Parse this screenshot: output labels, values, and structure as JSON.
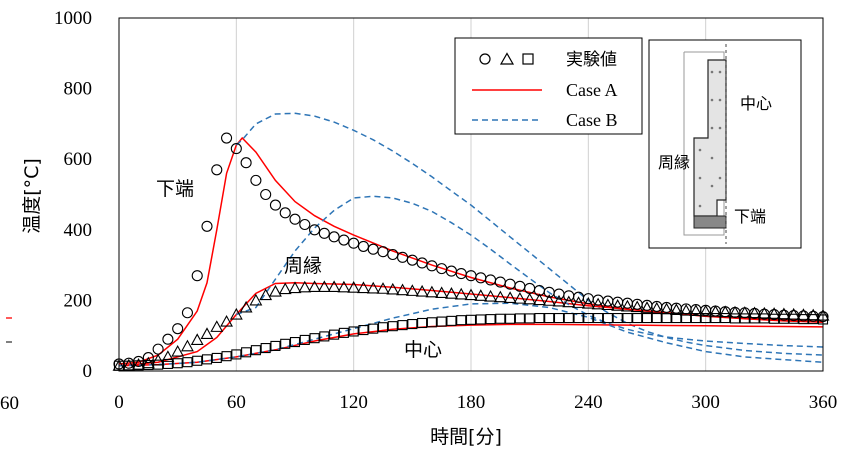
{
  "chart_data": {
    "type": "line",
    "xlabel": "時間[分]",
    "ylabel": "温度[°C]",
    "xlim": [
      0,
      360
    ],
    "ylim": [
      0,
      1000
    ],
    "xticks": [
      "0",
      "60",
      "120",
      "180",
      "240",
      "300",
      "360"
    ],
    "yticks": [
      "0",
      "200",
      "400",
      "600",
      "800",
      "1000"
    ],
    "left_clipped_tick": "60",
    "grid": "vertical only",
    "legend": {
      "position": "top-right",
      "marker_label": "実験値",
      "marker_glyphs": "○ △ □",
      "case_a": "Case A",
      "case_b": "Case B"
    },
    "annotations": {
      "bottom": "下端",
      "edge": "周縁",
      "center": "中心"
    },
    "inset": {
      "center": "中心",
      "edge": "周縁",
      "bottom": "下端"
    },
    "colors": {
      "case_a": "#ff0000",
      "case_b": "#2e75b6",
      "markers": "#000000"
    },
    "series": [
      {
        "name": "下端",
        "kind": "experiment",
        "marker": "circle",
        "x": [
          0,
          5,
          10,
          15,
          20,
          25,
          30,
          35,
          40,
          45,
          50,
          55,
          60,
          65,
          70,
          75,
          80,
          85,
          90,
          95,
          100,
          105,
          110,
          115,
          120,
          125,
          130,
          135,
          140,
          145,
          150,
          155,
          160,
          165,
          170,
          175,
          180,
          185,
          190,
          195,
          200,
          205,
          210,
          215,
          220,
          225,
          230,
          235,
          240,
          245,
          250,
          255,
          260,
          265,
          270,
          275,
          280,
          285,
          290,
          295,
          300,
          305,
          310,
          315,
          320,
          325,
          330,
          335,
          340,
          345,
          350,
          355,
          360
        ],
        "values": [
          20,
          22,
          27,
          38,
          62,
          90,
          120,
          165,
          270,
          410,
          570,
          660,
          630,
          590,
          540,
          500,
          470,
          448,
          430,
          415,
          400,
          390,
          380,
          371,
          362,
          353,
          345,
          338,
          330,
          322,
          314,
          306,
          298,
          290,
          283,
          276,
          270,
          264,
          258,
          252,
          246,
          240,
          234,
          228,
          223,
          218,
          213,
          209,
          205,
          201,
          198,
          195,
          192,
          189,
          186,
          183,
          180,
          178,
          176,
          174,
          172,
          170,
          168,
          166,
          165,
          163,
          161,
          160,
          158,
          157,
          156,
          155,
          154
        ]
      },
      {
        "name": "周縁",
        "kind": "experiment",
        "marker": "triangle",
        "x": [
          0,
          5,
          10,
          15,
          20,
          25,
          30,
          35,
          40,
          45,
          50,
          55,
          60,
          65,
          70,
          75,
          80,
          85,
          90,
          95,
          100,
          105,
          110,
          115,
          120,
          125,
          130,
          135,
          140,
          145,
          150,
          155,
          160,
          165,
          170,
          175,
          180,
          185,
          190,
          195,
          200,
          205,
          210,
          215,
          220,
          225,
          230,
          235,
          240,
          245,
          250,
          255,
          260,
          265,
          270,
          275,
          280,
          285,
          290,
          295,
          300,
          305,
          310,
          315,
          320,
          325,
          330,
          335,
          340,
          345,
          350,
          355,
          360
        ],
        "values": [
          15,
          16,
          18,
          22,
          30,
          40,
          55,
          70,
          88,
          105,
          125,
          140,
          160,
          180,
          200,
          215,
          225,
          232,
          235,
          237,
          238,
          238,
          238,
          237,
          236,
          235,
          234,
          233,
          231,
          229,
          227,
          225,
          223,
          221,
          219,
          217,
          215,
          213,
          211,
          209,
          207,
          205,
          203,
          201,
          199,
          197,
          195,
          193,
          191,
          189,
          187,
          185,
          183,
          181,
          179,
          177,
          175,
          173,
          171,
          170,
          169,
          168,
          167,
          166,
          165,
          164,
          163,
          162,
          161,
          160,
          159,
          158,
          157
        ]
      },
      {
        "name": "中心",
        "kind": "experiment",
        "marker": "square",
        "x": [
          0,
          5,
          10,
          15,
          20,
          25,
          30,
          35,
          40,
          45,
          50,
          55,
          60,
          65,
          70,
          75,
          80,
          85,
          90,
          95,
          100,
          105,
          110,
          115,
          120,
          125,
          130,
          135,
          140,
          145,
          150,
          155,
          160,
          165,
          170,
          175,
          180,
          185,
          190,
          195,
          200,
          205,
          210,
          215,
          220,
          225,
          230,
          235,
          240,
          245,
          250,
          255,
          260,
          265,
          270,
          275,
          280,
          285,
          290,
          295,
          300,
          305,
          310,
          315,
          320,
          325,
          330,
          335,
          340,
          345,
          350,
          355,
          360
        ],
        "values": [
          15,
          15,
          16,
          17,
          18,
          20,
          22,
          25,
          29,
          33,
          37,
          42,
          47,
          53,
          59,
          65,
          71,
          77,
          82,
          88,
          93,
          98,
          103,
          108,
          112,
          116,
          120,
          124,
          127,
          130,
          133,
          136,
          138,
          140,
          142,
          144,
          145,
          146,
          147,
          148,
          148,
          149,
          149,
          150,
          150,
          150,
          150,
          150,
          150,
          150,
          150,
          150,
          150,
          150,
          150,
          150,
          150,
          150,
          150,
          150,
          150,
          150,
          150,
          149,
          149,
          149,
          149,
          148,
          148,
          148,
          147,
          147,
          146
        ]
      },
      {
        "name": "下端 Case A",
        "kind": "case_a",
        "x": [
          0,
          10,
          20,
          30,
          40,
          45,
          50,
          55,
          60,
          63,
          70,
          80,
          90,
          100,
          110,
          120,
          140,
          160,
          180,
          200,
          220,
          240,
          260,
          280,
          300,
          320,
          340,
          360
        ],
        "values": [
          20,
          25,
          45,
          90,
          170,
          250,
          400,
          560,
          640,
          660,
          620,
          540,
          480,
          440,
          410,
          385,
          340,
          300,
          265,
          235,
          210,
          190,
          175,
          165,
          155,
          150,
          145,
          140
        ]
      },
      {
        "name": "下端 Case B",
        "kind": "case_b",
        "x": [
          60,
          63,
          70,
          80,
          90,
          100,
          110,
          120,
          130,
          140,
          150,
          160,
          170,
          180,
          190,
          200,
          210,
          220,
          230,
          240,
          250,
          260,
          270,
          280,
          290,
          300,
          320,
          340,
          360
        ],
        "values": [
          640,
          655,
          700,
          728,
          730,
          722,
          705,
          682,
          655,
          623,
          588,
          550,
          510,
          470,
          425,
          380,
          335,
          290,
          245,
          200,
          165,
          135,
          112,
          95,
          82,
          72,
          58,
          50,
          45
        ]
      },
      {
        "name": "周縁 Case A",
        "kind": "case_a",
        "x": [
          0,
          20,
          40,
          50,
          60,
          70,
          80,
          90,
          100,
          120,
          140,
          160,
          180,
          200,
          220,
          240,
          260,
          280,
          300,
          320,
          340,
          360
        ],
        "values": [
          15,
          25,
          55,
          95,
          160,
          220,
          248,
          250,
          248,
          245,
          237,
          228,
          218,
          208,
          197,
          185,
          175,
          165,
          155,
          148,
          142,
          138
        ]
      },
      {
        "name": "周縁 Case B",
        "kind": "case_b",
        "x": [
          60,
          70,
          80,
          90,
          100,
          110,
          120,
          130,
          140,
          150,
          160,
          170,
          180,
          190,
          200,
          210,
          220,
          230,
          240,
          250,
          260,
          270,
          280,
          290,
          300,
          320,
          340,
          360
        ],
        "values": [
          160,
          180,
          260,
          340,
          405,
          455,
          490,
          495,
          490,
          475,
          452,
          420,
          385,
          345,
          303,
          262,
          222,
          188,
          158,
          135,
          118,
          105,
          96,
          90,
          85,
          78,
          72,
          68
        ]
      },
      {
        "name": "中心 Case A",
        "kind": "case_a",
        "x": [
          0,
          20,
          40,
          60,
          80,
          100,
          120,
          140,
          160,
          180,
          200,
          220,
          240,
          260,
          280,
          300,
          320,
          340,
          360
        ],
        "values": [
          15,
          18,
          25,
          40,
          60,
          85,
          105,
          118,
          126,
          130,
          132,
          132,
          131,
          130,
          129,
          128,
          127,
          126,
          125
        ]
      },
      {
        "name": "中心 Case B",
        "kind": "case_b",
        "x": [
          0,
          20,
          40,
          60,
          80,
          100,
          120,
          140,
          160,
          180,
          200,
          220,
          240,
          260,
          280,
          300,
          320,
          340,
          360
        ],
        "values": [
          15,
          18,
          25,
          40,
          60,
          90,
          120,
          150,
          175,
          190,
          192,
          180,
          152,
          110,
          80,
          55,
          40,
          32,
          25
        ]
      }
    ]
  }
}
